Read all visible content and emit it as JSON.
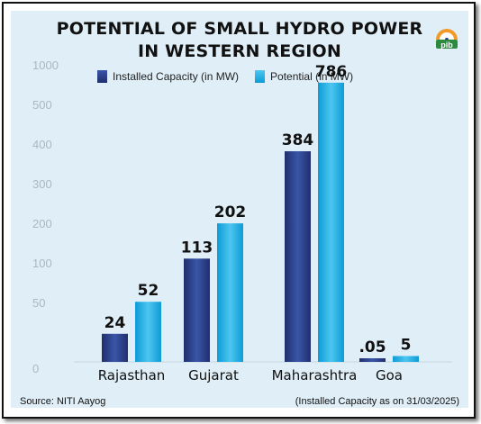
{
  "title_line1": "POTENTIAL OF SMALL HYDRO POWER",
  "title_line2": "IN WESTERN REGION",
  "logo_text": "pib",
  "source": "Source: NITI Aayog",
  "note": "(Installed Capacity as on 31/03/2025)",
  "colors": {
    "installed": "#263b86",
    "potential": "#12aee6",
    "background": "#dfeef7"
  },
  "chart_data": {
    "type": "bar",
    "categories": [
      "Rajasthan",
      "Gujarat",
      "Maharashtra",
      "Goa"
    ],
    "y_tick_labels": [
      "0",
      "50",
      "100",
      "200",
      "300",
      "400",
      "500",
      "1000"
    ],
    "axis_scale": "non-linear (broken scale)",
    "grid": false,
    "legend_position": "top",
    "series": [
      {
        "name": "Installed Capacity (in MW)",
        "values": [
          24,
          113,
          384,
          0.05
        ],
        "labels": [
          "24",
          "113",
          "384",
          ".05"
        ]
      },
      {
        "name": "Potential (in MW)",
        "values": [
          52,
          202,
          786,
          5
        ],
        "labels": [
          "52",
          "202",
          "786",
          "5"
        ]
      }
    ]
  }
}
